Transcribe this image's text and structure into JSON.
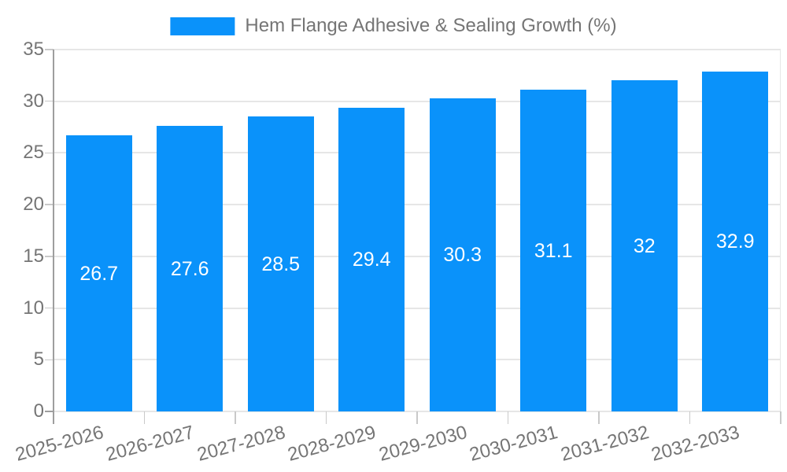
{
  "chart_data": {
    "type": "bar",
    "title": "",
    "series_name": "Hem Flange Adhesive & Sealing Growth (%)",
    "categories": [
      "2025-2026",
      "2026-2027",
      "2027-2028",
      "2028-2029",
      "2029-2030",
      "2030-2031",
      "2031-2032",
      "2032-2033"
    ],
    "values": [
      26.7,
      27.6,
      28.5,
      29.4,
      30.3,
      31.1,
      32,
      32.9
    ],
    "bar_labels": [
      "26.7",
      "27.6",
      "28.5",
      "29.4",
      "30.3",
      "31.1",
      "32",
      "32.9"
    ],
    "y_ticks": [
      0,
      5,
      10,
      15,
      20,
      25,
      30,
      35
    ],
    "ylim": [
      0,
      35
    ],
    "xlabel": "",
    "ylabel": "",
    "grid": true,
    "legend_position": "top-center",
    "x_label_rotation_deg": -15,
    "bar_color": "#0A92FA",
    "bar_label_color": "#ffffff",
    "grid_color": "#e6e6e6",
    "axis_color": "#9e9e9e",
    "tick_color": "#c9c9c9",
    "text_color": "#757575",
    "background_color": "#ffffff"
  }
}
